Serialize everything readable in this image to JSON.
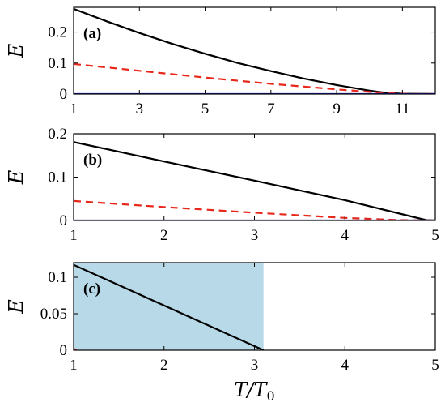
{
  "chart_data": [
    {
      "type": "line",
      "panel_label": "(a)",
      "ylabel": "E",
      "xlim": [
        1,
        12
      ],
      "ylim": [
        0,
        0.28
      ],
      "xticks": [
        1,
        3,
        5,
        7,
        9,
        11
      ],
      "yticks": [
        0,
        0.1,
        0.2
      ],
      "ytick_labels": [
        "0",
        "0.1",
        "0.2"
      ],
      "series": [
        {
          "color": "#000000",
          "style": "solid",
          "x": [
            1,
            2,
            3,
            4,
            5,
            6,
            7,
            8,
            9,
            10,
            10.5,
            11,
            12
          ],
          "y": [
            0.275,
            0.235,
            0.197,
            0.162,
            0.13,
            0.1,
            0.074,
            0.05,
            0.029,
            0.011,
            0.004,
            0.001,
            0.0
          ]
        },
        {
          "color": "#e8271b",
          "style": "dashed",
          "x": [
            1,
            2,
            3,
            4,
            5,
            6,
            7,
            8,
            9,
            10,
            11,
            12
          ],
          "y": [
            0.097,
            0.086,
            0.075,
            0.064,
            0.053,
            0.043,
            0.033,
            0.024,
            0.015,
            0.007,
            0.001,
            0.0
          ]
        },
        {
          "color": "#1f23b8",
          "style": "solid",
          "x": [
            1,
            12
          ],
          "y": [
            0.0,
            0.0
          ]
        }
      ]
    },
    {
      "type": "line",
      "panel_label": "(b)",
      "ylabel": "E",
      "xlim": [
        1,
        5
      ],
      "ylim": [
        0,
        0.2
      ],
      "xticks": [
        1,
        2,
        3,
        4,
        5
      ],
      "yticks": [
        0,
        0.1,
        0.2
      ],
      "ytick_labels": [
        "0",
        "0.1",
        "0.2"
      ],
      "series": [
        {
          "color": "#000000",
          "style": "solid",
          "x": [
            1,
            2,
            3,
            4,
            4.8,
            4.9,
            5
          ],
          "y": [
            0.181,
            0.136,
            0.092,
            0.047,
            0.006,
            0.001,
            0.0
          ]
        },
        {
          "color": "#e8271b",
          "style": "dashed",
          "x": [
            1,
            2,
            3,
            4,
            4.6,
            5
          ],
          "y": [
            0.045,
            0.031,
            0.018,
            0.006,
            0.001,
            0.0
          ]
        },
        {
          "color": "#1f23b8",
          "style": "solid",
          "x": [
            1,
            5
          ],
          "y": [
            0.0,
            0.0
          ]
        }
      ]
    },
    {
      "type": "line",
      "panel_label": "(c)",
      "ylabel": "E",
      "xlabel": "T/T0",
      "xlim": [
        1,
        5
      ],
      "ylim": [
        0,
        0.12
      ],
      "xticks": [
        1,
        2,
        3,
        4,
        5
      ],
      "yticks": [
        0,
        0.05,
        0.1
      ],
      "ytick_labels": [
        "0",
        "0.05",
        "0.1"
      ],
      "shaded_region": {
        "x_from": 1,
        "x_to": 3.1,
        "color": "#b8d9e8"
      },
      "series": [
        {
          "color": "#000000",
          "style": "solid",
          "x": [
            1,
            3.1
          ],
          "y": [
            0.117,
            0.0
          ]
        },
        {
          "color": "#e8271b",
          "style": "dashed",
          "x": [
            1,
            1.03
          ],
          "y": [
            0.002,
            0.0
          ]
        }
      ]
    }
  ]
}
